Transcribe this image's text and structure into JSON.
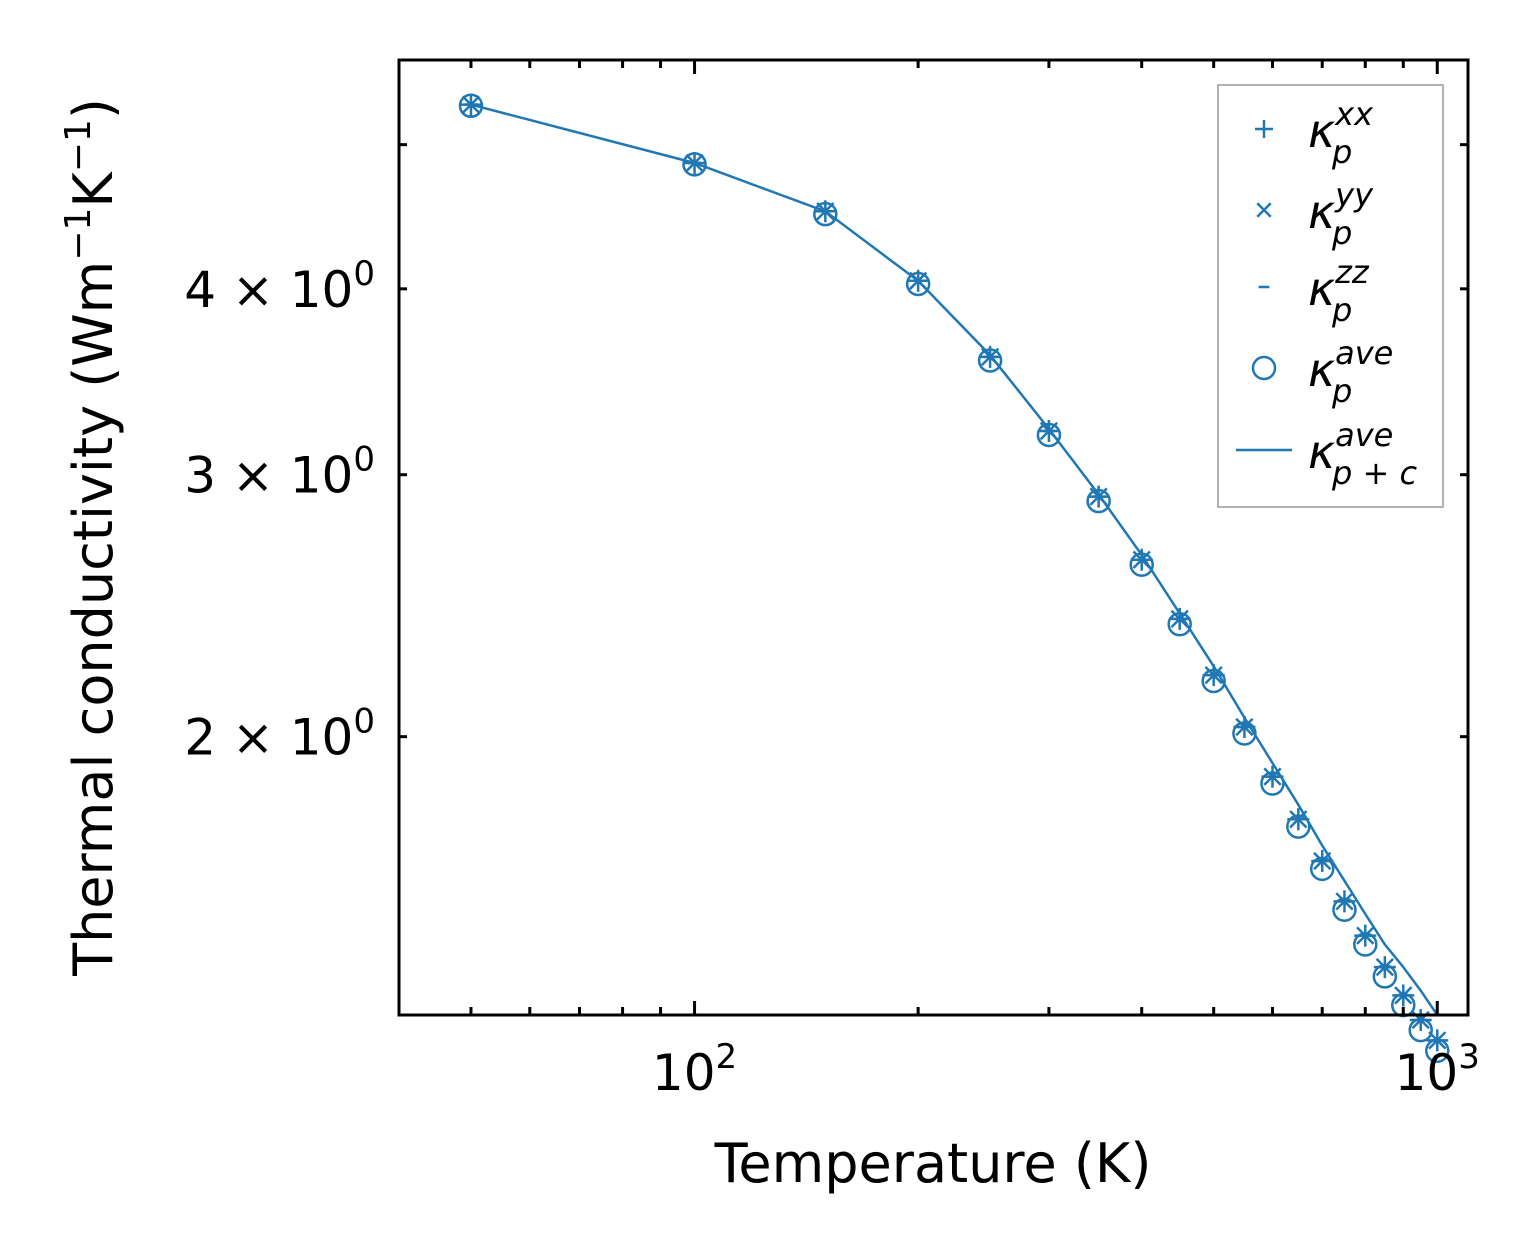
{
  "chart_data": {
    "type": "line",
    "xlabel": "Temperature (K)",
    "ylabel": "Thermal conductivity (Wm",
    "ylabel_parts": [
      "Thermal conductivity (Wm",
      "−1",
      "K",
      "−1",
      ")"
    ],
    "xscale": "log",
    "yscale": "log",
    "xlim": [
      40,
      1100
    ],
    "ylim": [
      1.3,
      5.7
    ],
    "color": "#1f77b4",
    "xticks": [
      {
        "base": "10",
        "exp": "2",
        "value": 100
      },
      {
        "base": "10",
        "exp": "3",
        "value": 1000
      }
    ],
    "yticks": [
      {
        "coef": "2",
        "base": "× 10",
        "exp": "0",
        "value": 2
      },
      {
        "coef": "3",
        "base": "× 10",
        "exp": "0",
        "value": 3
      },
      {
        "coef": "4",
        "base": "× 10",
        "exp": "0",
        "value": 4
      }
    ],
    "x": [
      50,
      100,
      150,
      200,
      250,
      300,
      350,
      400,
      450,
      500,
      550,
      600,
      650,
      700,
      750,
      800,
      850,
      900,
      950,
      1000
    ],
    "series": [
      {
        "name": "κ_p^xx",
        "label_main": "κ",
        "label_sub": "p",
        "label_sup": "xx",
        "marker": "plus",
        "values": [
          5.32,
          4.86,
          4.51,
          4.05,
          3.6,
          3.21,
          2.9,
          2.63,
          2.4,
          2.2,
          2.03,
          1.88,
          1.76,
          1.65,
          1.55,
          1.47,
          1.4,
          1.34,
          1.29,
          1.25
        ]
      },
      {
        "name": "κ_p^yy",
        "label_main": "κ",
        "label_sub": "p",
        "label_sup": "yy",
        "marker": "x",
        "values": [
          5.32,
          4.86,
          4.51,
          4.05,
          3.6,
          3.21,
          2.9,
          2.63,
          2.4,
          2.2,
          2.03,
          1.88,
          1.76,
          1.65,
          1.55,
          1.47,
          1.4,
          1.34,
          1.29,
          1.25
        ]
      },
      {
        "name": "κ_p^zz",
        "label_main": "κ",
        "label_sub": "p",
        "label_sup": "zz",
        "marker": "hline",
        "values": [
          5.32,
          4.86,
          4.51,
          4.05,
          3.6,
          3.21,
          2.9,
          2.63,
          2.4,
          2.2,
          2.03,
          1.88,
          1.76,
          1.65,
          1.55,
          1.47,
          1.4,
          1.34,
          1.29,
          1.25
        ]
      },
      {
        "name": "κ_p^ave",
        "label_main": "κ",
        "label_sub": "p",
        "label_sup": "ave",
        "marker": "circle",
        "values": [
          5.31,
          4.85,
          4.49,
          4.03,
          3.58,
          3.19,
          2.88,
          2.61,
          2.38,
          2.18,
          2.01,
          1.86,
          1.74,
          1.63,
          1.53,
          1.45,
          1.38,
          1.32,
          1.27,
          1.23
        ]
      },
      {
        "name": "κ_p+c^ave",
        "label_main": "κ",
        "label_sub": "p + c",
        "label_sup": "ave",
        "marker": "line",
        "values": [
          5.32,
          4.86,
          4.51,
          4.05,
          3.61,
          3.22,
          2.91,
          2.65,
          2.42,
          2.23,
          2.06,
          1.92,
          1.8,
          1.69,
          1.6,
          1.52,
          1.45,
          1.4,
          1.35,
          1.3
        ]
      }
    ],
    "legend": "upper-right",
    "grid": false
  }
}
